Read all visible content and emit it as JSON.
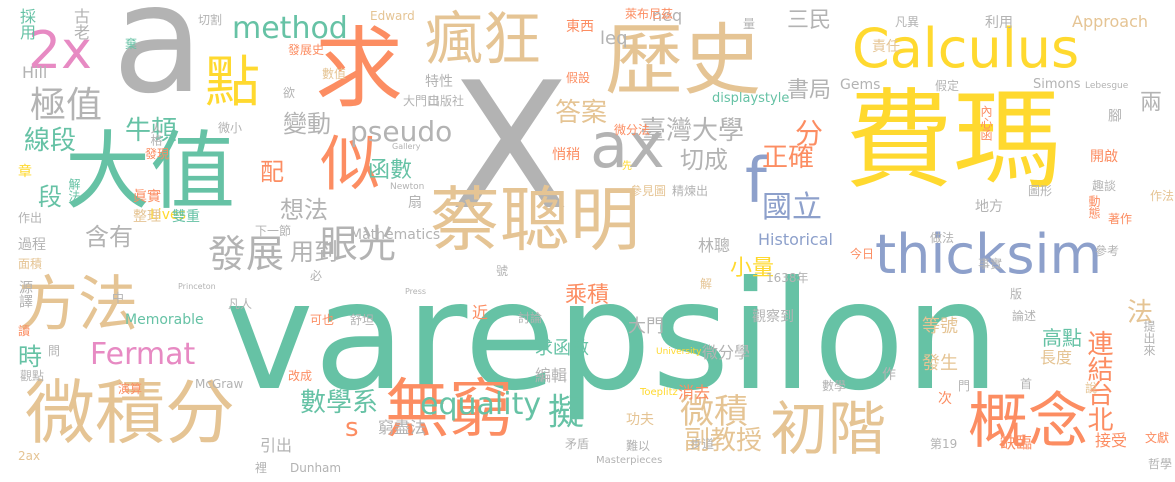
{
  "palette": {
    "green": "#66c2a5",
    "orange": "#fc8d62",
    "blue": "#8da0cb",
    "pink": "#e78ac3",
    "lime": "#a6d854",
    "yellow": "#ffd92f",
    "tan": "#e5c494",
    "gray": "#b3b3b3"
  },
  "words": [
    {
      "text": "varepsilon",
      "color": "green"
    },
    {
      "text": "X",
      "color": "gray"
    },
    {
      "text": "a",
      "color": "gray"
    },
    {
      "text": "費瑪",
      "color": "yellow"
    },
    {
      "text": "大值",
      "color": "green"
    },
    {
      "text": "蔡聰明",
      "color": "tan"
    },
    {
      "text": "歷史",
      "color": "tan"
    },
    {
      "text": "求",
      "color": "orange"
    },
    {
      "text": "瘋狂",
      "color": "tan"
    },
    {
      "text": "Calculus",
      "color": "yellow"
    },
    {
      "text": "微積分",
      "color": "tan"
    },
    {
      "text": "方法",
      "color": "tan"
    },
    {
      "text": "無窮",
      "color": "orange"
    },
    {
      "text": "初階",
      "color": "tan"
    },
    {
      "text": "概念",
      "color": "orange"
    },
    {
      "text": "thicksim",
      "color": "blue"
    },
    {
      "text": "ax",
      "color": "gray"
    },
    {
      "text": "點",
      "color": "yellow"
    },
    {
      "text": "似",
      "color": "orange"
    },
    {
      "text": "2x",
      "color": "pink"
    },
    {
      "text": "f",
      "color": "blue"
    },
    {
      "text": "眼光",
      "color": "gray"
    },
    {
      "text": "發展",
      "color": "gray"
    },
    {
      "text": "method",
      "color": "green"
    },
    {
      "text": "pseudo",
      "color": "gray"
    },
    {
      "text": "Fermat",
      "color": "pink"
    },
    {
      "text": "equality",
      "color": "green"
    },
    {
      "text": "擬",
      "color": "green"
    },
    {
      "text": "微積",
      "color": "tan"
    },
    {
      "text": "極值",
      "color": "gray"
    },
    {
      "text": "國立",
      "color": "blue"
    },
    {
      "text": "臺灣大學",
      "color": "gray"
    },
    {
      "text": "答案",
      "color": "tan"
    },
    {
      "text": "正確",
      "color": "orange"
    },
    {
      "text": "數學系",
      "color": "green"
    },
    {
      "text": "副教授",
      "color": "tan"
    },
    {
      "text": "書局",
      "color": "gray"
    },
    {
      "text": "三民",
      "color": "gray"
    },
    {
      "text": "分",
      "color": "orange"
    },
    {
      "text": "函數",
      "color": "green"
    },
    {
      "text": "牛頓",
      "color": "green"
    },
    {
      "text": "線段",
      "color": "green"
    },
    {
      "text": "變動",
      "color": "gray"
    },
    {
      "text": "想法",
      "color": "gray"
    },
    {
      "text": "含有",
      "color": "gray"
    },
    {
      "text": "用到",
      "color": "gray"
    },
    {
      "text": "小量",
      "color": "yellow"
    },
    {
      "text": "切成",
      "color": "gray"
    },
    {
      "text": "leq",
      "color": "gray"
    },
    {
      "text": "連結",
      "color": "orange"
    },
    {
      "text": "台北",
      "color": "orange"
    },
    {
      "text": "兩",
      "color": "gray"
    },
    {
      "text": "法",
      "color": "tan"
    },
    {
      "text": "段",
      "color": "green"
    },
    {
      "text": "配",
      "color": "orange"
    },
    {
      "text": "時",
      "color": "green"
    },
    {
      "text": "s",
      "color": "orange"
    },
    {
      "text": "大門",
      "color": "gray"
    },
    {
      "text": "乘積",
      "color": "orange"
    },
    {
      "text": "求函數",
      "color": "green"
    },
    {
      "text": "編輯",
      "color": "gray"
    },
    {
      "text": "消去",
      "color": "orange"
    },
    {
      "text": "微分學",
      "color": "gray"
    },
    {
      "text": "窮盡法",
      "color": "gray"
    },
    {
      "text": "高點",
      "color": "green"
    },
    {
      "text": "長度",
      "color": "tan"
    },
    {
      "text": "發生",
      "color": "tan"
    },
    {
      "text": "等號",
      "color": "tan"
    },
    {
      "text": "Historical",
      "color": "blue"
    },
    {
      "text": "1638年",
      "color": "gray"
    },
    {
      "text": "觀察到",
      "color": "gray"
    },
    {
      "text": "Approach",
      "color": "tan"
    },
    {
      "text": "Gems",
      "color": "gray"
    },
    {
      "text": "Memorable",
      "color": "green"
    },
    {
      "text": "Mathematics",
      "color": "gray"
    },
    {
      "text": "Simons",
      "color": "gray"
    },
    {
      "text": "Lebesgue",
      "color": "gray"
    },
    {
      "text": "Edward",
      "color": "tan"
    },
    {
      "text": "Dunham",
      "color": "gray"
    },
    {
      "text": "McGraw",
      "color": "gray"
    },
    {
      "text": "Newton",
      "color": "gray"
    },
    {
      "text": "Press",
      "color": "gray"
    },
    {
      "text": "Princeton",
      "color": "gray"
    },
    {
      "text": "University",
      "color": "yellow"
    },
    {
      "text": "Toeplitz",
      "color": "yellow"
    },
    {
      "text": "Lives",
      "color": "yellow"
    },
    {
      "text": "Gallery",
      "color": "gray"
    },
    {
      "text": "Masterpieces",
      "color": "gray"
    },
    {
      "text": "Hill",
      "color": "gray"
    },
    {
      "text": "displaystyle",
      "color": "green"
    },
    {
      "text": "2ax",
      "color": "tan"
    },
    {
      "text": "neq",
      "color": "gray"
    },
    {
      "text": "萊布尼茲",
      "color": "orange"
    },
    {
      "text": "東西",
      "color": "orange"
    },
    {
      "text": "切割",
      "color": "gray"
    },
    {
      "text": "古老",
      "color": "gray"
    },
    {
      "text": "採用",
      "color": "green"
    },
    {
      "text": "棄",
      "color": "green"
    },
    {
      "text": "發展史",
      "color": "orange"
    },
    {
      "text": "數值",
      "color": "tan"
    },
    {
      "text": "欲",
      "color": "gray"
    },
    {
      "text": "特性",
      "color": "gray"
    },
    {
      "text": "假設",
      "color": "orange"
    },
    {
      "text": "大門口",
      "color": "gray"
    },
    {
      "text": "出版社",
      "color": "gray"
    },
    {
      "text": "量",
      "color": "gray"
    },
    {
      "text": "凡異",
      "color": "gray"
    },
    {
      "text": "利用",
      "color": "gray"
    },
    {
      "text": "責任",
      "color": "tan"
    },
    {
      "text": "假定",
      "color": "gray"
    },
    {
      "text": "內心函",
      "color": "orange"
    },
    {
      "text": "微小",
      "color": "gray"
    },
    {
      "text": "發現",
      "color": "orange"
    },
    {
      "text": "人格",
      "color": "gray"
    },
    {
      "text": "章",
      "color": "yellow"
    },
    {
      "text": "解法",
      "color": "green"
    },
    {
      "text": "眞實",
      "color": "orange"
    },
    {
      "text": "作出",
      "color": "gray"
    },
    {
      "text": "過程",
      "color": "gray"
    },
    {
      "text": "面積",
      "color": "tan"
    },
    {
      "text": "源譯",
      "color": "gray"
    },
    {
      "text": "讀",
      "color": "orange"
    },
    {
      "text": "問",
      "color": "gray"
    },
    {
      "text": "觀點",
      "color": "gray"
    },
    {
      "text": "演算",
      "color": "orange"
    },
    {
      "text": "整理",
      "color": "tan"
    },
    {
      "text": "雙重",
      "color": "green"
    },
    {
      "text": "下一節",
      "color": "gray"
    },
    {
      "text": "必",
      "color": "gray"
    },
    {
      "text": "凡人",
      "color": "gray"
    },
    {
      "text": "可也",
      "color": "orange"
    },
    {
      "text": "舒坦",
      "color": "gray"
    },
    {
      "text": "改成",
      "color": "orange"
    },
    {
      "text": "引出",
      "color": "gray"
    },
    {
      "text": "裡",
      "color": "gray"
    },
    {
      "text": "中",
      "color": "gray"
    },
    {
      "text": "扇",
      "color": "gray"
    },
    {
      "text": "號",
      "color": "gray"
    },
    {
      "text": "先",
      "color": "yellow"
    },
    {
      "text": "悄稍",
      "color": "orange"
    },
    {
      "text": "微分法",
      "color": "orange"
    },
    {
      "text": "參見圖",
      "color": "tan"
    },
    {
      "text": "精煉出",
      "color": "gray"
    },
    {
      "text": "林聰",
      "color": "gray"
    },
    {
      "text": "解",
      "color": "tan"
    },
    {
      "text": "近",
      "color": "orange"
    },
    {
      "text": "討論",
      "color": "gray"
    },
    {
      "text": "矛盾",
      "color": "gray"
    },
    {
      "text": "功夫",
      "color": "tan"
    },
    {
      "text": "難以",
      "color": "gray"
    },
    {
      "text": "步道",
      "color": "gray"
    },
    {
      "text": "數學",
      "color": "gray"
    },
    {
      "text": "作",
      "color": "gray"
    },
    {
      "text": "門",
      "color": "gray"
    },
    {
      "text": "次",
      "color": "orange"
    },
    {
      "text": "首",
      "color": "gray"
    },
    {
      "text": "第19",
      "color": "gray"
    },
    {
      "text": "缺臨",
      "color": "orange"
    },
    {
      "text": "接受",
      "color": "orange"
    },
    {
      "text": "說",
      "color": "tan"
    },
    {
      "text": "文獻",
      "color": "orange"
    },
    {
      "text": "哲學",
      "color": "gray"
    },
    {
      "text": "提出來",
      "color": "gray"
    },
    {
      "text": "版",
      "color": "gray"
    },
    {
      "text": "論述",
      "color": "gray"
    },
    {
      "text": "參考",
      "color": "gray"
    },
    {
      "text": "事實",
      "color": "gray"
    },
    {
      "text": "做法",
      "color": "gray"
    },
    {
      "text": "今日",
      "color": "orange"
    },
    {
      "text": "地方",
      "color": "gray"
    },
    {
      "text": "著作",
      "color": "orange"
    },
    {
      "text": "作法",
      "color": "tan"
    },
    {
      "text": "趣談",
      "color": "gray"
    },
    {
      "text": "圖形",
      "color": "gray"
    },
    {
      "text": "開啟",
      "color": "orange"
    },
    {
      "text": "動態",
      "color": "orange"
    },
    {
      "text": "腳",
      "color": "gray"
    }
  ]
}
